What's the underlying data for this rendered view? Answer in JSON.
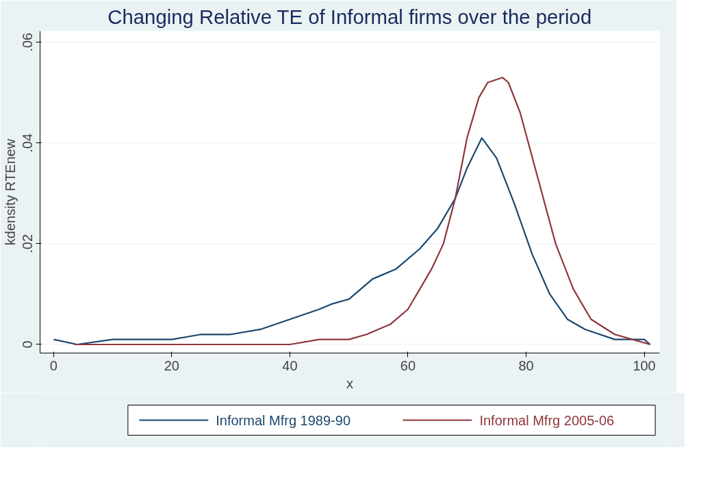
{
  "chart_data": {
    "type": "line",
    "title": "Changing Relative TE of Informal firms over the period",
    "xlabel": "x",
    "ylabel": "kdensity RTEnew",
    "xlim": [
      -2.3,
      102.6
    ],
    "ylim": [
      -0.0017,
      0.0622
    ],
    "xticks": [
      0,
      20,
      40,
      60,
      80,
      100
    ],
    "yticks": [
      {
        "value": 0,
        "label": "0"
      },
      {
        "value": 0.02,
        "label": ".02"
      },
      {
        "value": 0.04,
        "label": ".04"
      },
      {
        "value": 0.06,
        "label": ".06"
      }
    ],
    "grid": "y",
    "legend": "bottom",
    "line_style": "solid",
    "series": [
      {
        "name": "Informal Mfrg 1989-90",
        "color": "#1a476f",
        "x": [
          0,
          4,
          10,
          15,
          20,
          25,
          30,
          35,
          40,
          45,
          47,
          50,
          54,
          58,
          62,
          65,
          68,
          70,
          72.5,
          75,
          78,
          81,
          84,
          87,
          90,
          95,
          100,
          101
        ],
        "values": [
          0.001,
          0.0,
          0.001,
          0.001,
          0.001,
          0.002,
          0.002,
          0.003,
          0.005,
          0.007,
          0.008,
          0.009,
          0.013,
          0.015,
          0.019,
          0.023,
          0.029,
          0.035,
          0.041,
          0.037,
          0.028,
          0.018,
          0.01,
          0.005,
          0.003,
          0.001,
          0.001,
          0.0
        ]
      },
      {
        "name": "Informal Mfrg 2005-06",
        "color": "#90353b",
        "x": [
          3.5,
          10,
          20,
          30,
          40,
          45,
          50,
          53,
          57,
          60,
          62,
          64,
          66,
          68,
          70,
          72,
          73.5,
          76,
          77,
          79,
          82,
          85,
          88,
          91,
          95,
          98,
          101
        ],
        "values": [
          0.0,
          0.0,
          0.0,
          0.0,
          0.0,
          0.001,
          0.001,
          0.002,
          0.004,
          0.007,
          0.011,
          0.015,
          0.02,
          0.029,
          0.041,
          0.049,
          0.052,
          0.053,
          0.052,
          0.046,
          0.033,
          0.02,
          0.011,
          0.005,
          0.002,
          0.001,
          0.0
        ]
      }
    ]
  }
}
